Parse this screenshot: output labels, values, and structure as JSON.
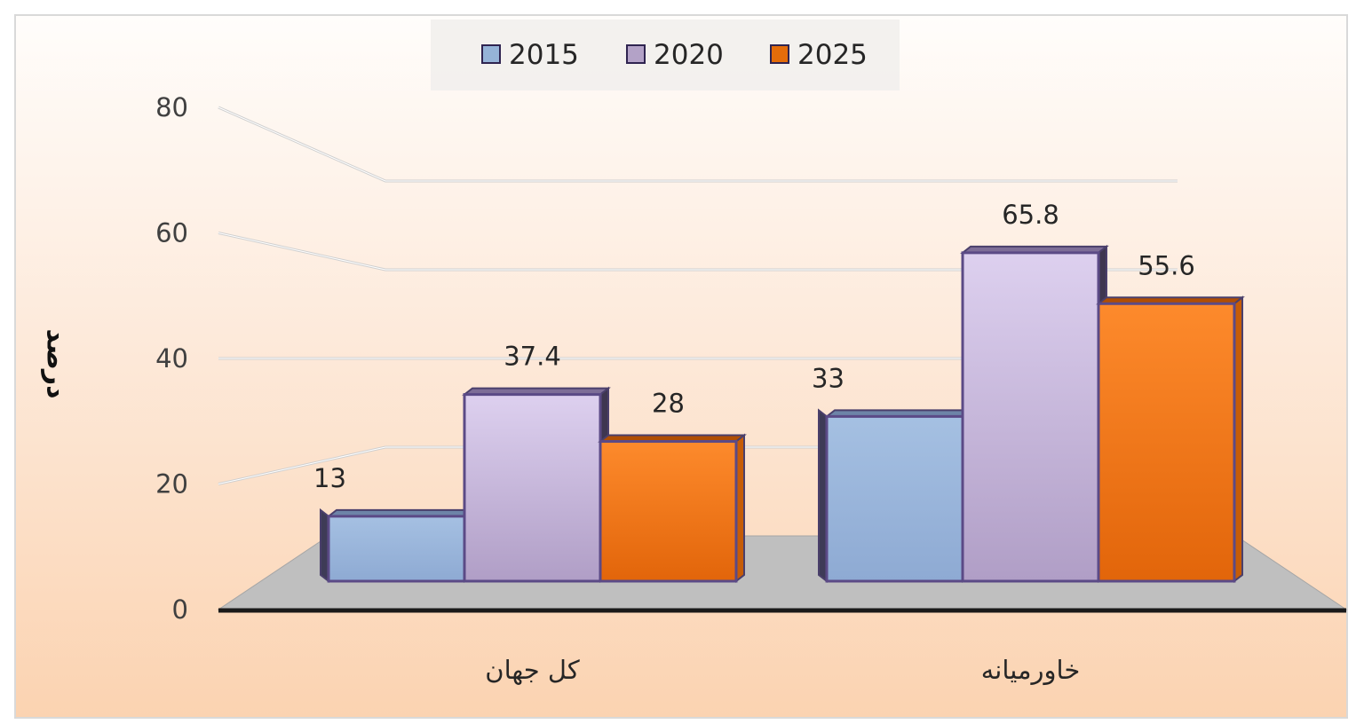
{
  "chart_data": {
    "type": "bar",
    "categories": [
      "كل جهان",
      "خاورمیانه"
    ],
    "series": [
      {
        "name": "2015",
        "values": [
          13,
          33
        ],
        "color": "#95b3d7"
      },
      {
        "name": "2020",
        "values": [
          37.4,
          65.8
        ],
        "color": "#b3a2c7"
      },
      {
        "name": "2025",
        "values": [
          28,
          55.6
        ],
        "color": "#e46c0a"
      }
    ],
    "ylabel": "درصد",
    "xlabel": "",
    "ylim": [
      0,
      80
    ],
    "yticks": [
      "0",
      "20",
      "40",
      "60",
      "80"
    ],
    "data_labels": [
      [
        "13",
        "33"
      ],
      [
        "37.4",
        "65.8"
      ],
      [
        "28",
        "55.6"
      ]
    ],
    "legend": "top-center",
    "grid": true,
    "style": "3d-clustered-column"
  }
}
